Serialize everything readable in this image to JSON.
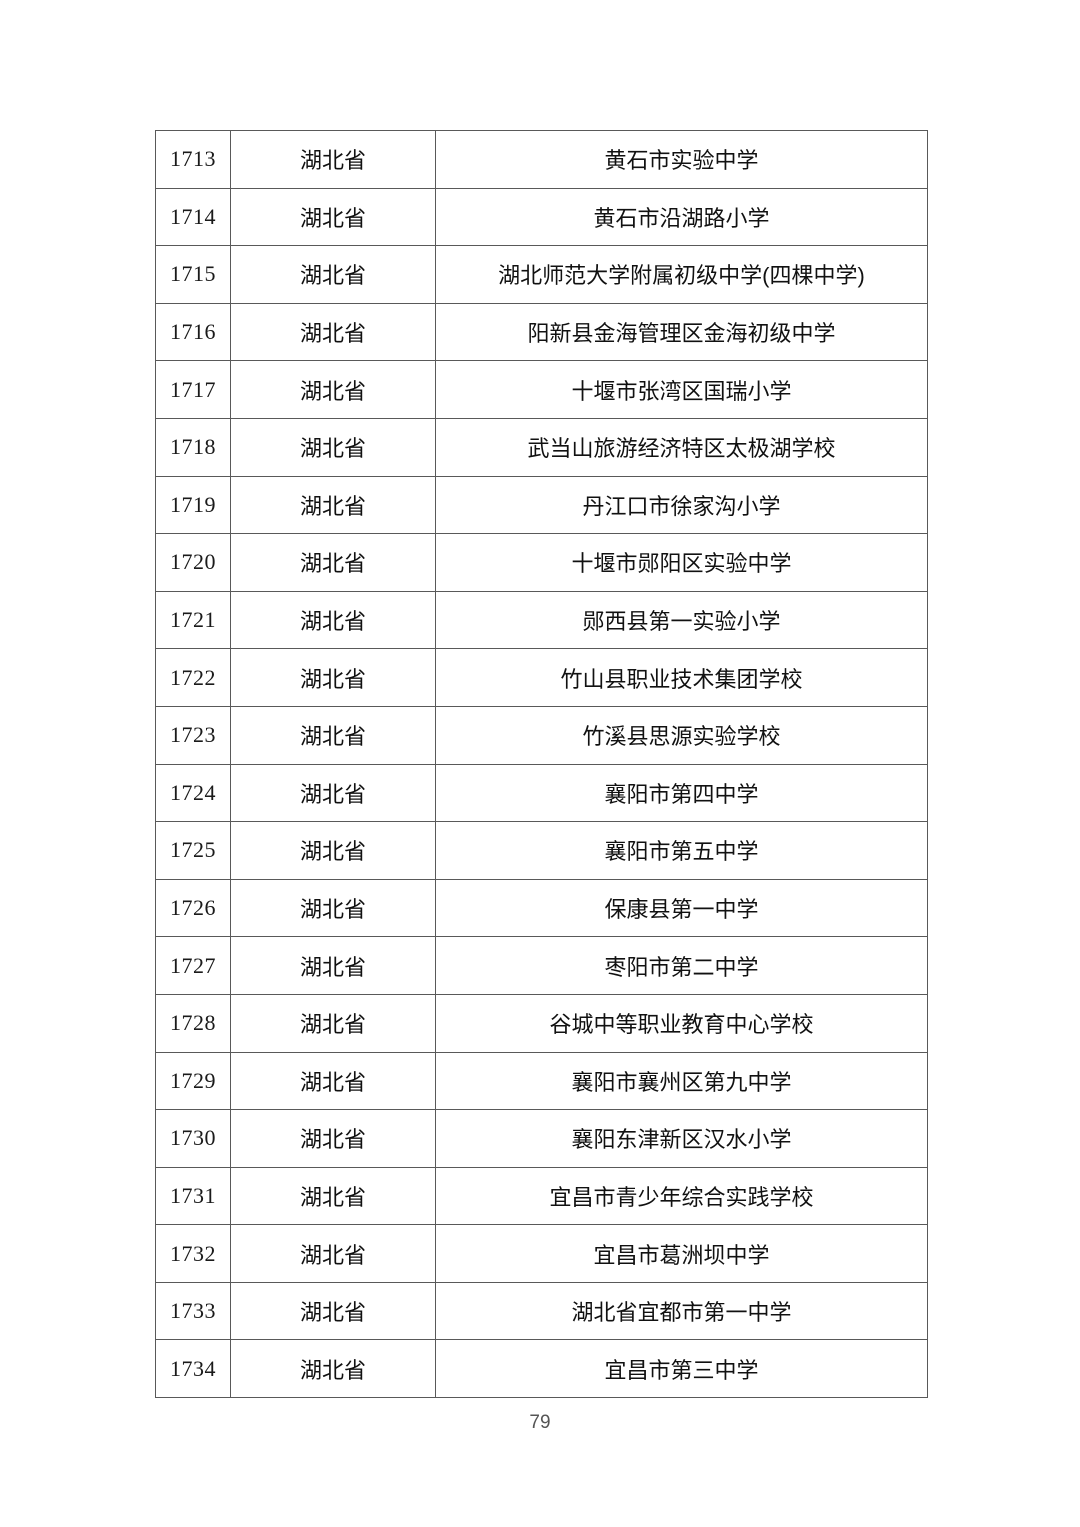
{
  "page": {
    "number": "79"
  },
  "table": {
    "columns": [
      "row-number",
      "province",
      "school-name"
    ],
    "rows": [
      {
        "id": "1713",
        "province": "湖北省",
        "school": "黄石市实验中学"
      },
      {
        "id": "1714",
        "province": "湖北省",
        "school": "黄石市沿湖路小学"
      },
      {
        "id": "1715",
        "province": "湖北省",
        "school": "湖北师范大学附属初级中学(四棵中学)"
      },
      {
        "id": "1716",
        "province": "湖北省",
        "school": "阳新县金海管理区金海初级中学"
      },
      {
        "id": "1717",
        "province": "湖北省",
        "school": "十堰市张湾区国瑞小学"
      },
      {
        "id": "1718",
        "province": "湖北省",
        "school": "武当山旅游经济特区太极湖学校"
      },
      {
        "id": "1719",
        "province": "湖北省",
        "school": "丹江口市徐家沟小学"
      },
      {
        "id": "1720",
        "province": "湖北省",
        "school": "十堰市郧阳区实验中学"
      },
      {
        "id": "1721",
        "province": "湖北省",
        "school": "郧西县第一实验小学"
      },
      {
        "id": "1722",
        "province": "湖北省",
        "school": "竹山县职业技术集团学校"
      },
      {
        "id": "1723",
        "province": "湖北省",
        "school": "竹溪县思源实验学校"
      },
      {
        "id": "1724",
        "province": "湖北省",
        "school": "襄阳市第四中学"
      },
      {
        "id": "1725",
        "province": "湖北省",
        "school": "襄阳市第五中学"
      },
      {
        "id": "1726",
        "province": "湖北省",
        "school": "保康县第一中学"
      },
      {
        "id": "1727",
        "province": "湖北省",
        "school": "枣阳市第二中学"
      },
      {
        "id": "1728",
        "province": "湖北省",
        "school": "谷城中等职业教育中心学校"
      },
      {
        "id": "1729",
        "province": "湖北省",
        "school": "襄阳市襄州区第九中学"
      },
      {
        "id": "1730",
        "province": "湖北省",
        "school": "襄阳东津新区汉水小学"
      },
      {
        "id": "1731",
        "province": "湖北省",
        "school": "宜昌市青少年综合实践学校"
      },
      {
        "id": "1732",
        "province": "湖北省",
        "school": "宜昌市葛洲坝中学"
      },
      {
        "id": "1733",
        "province": "湖北省",
        "school": "湖北省宜都市第一中学"
      },
      {
        "id": "1734",
        "province": "湖北省",
        "school": "宜昌市第三中学"
      }
    ]
  }
}
